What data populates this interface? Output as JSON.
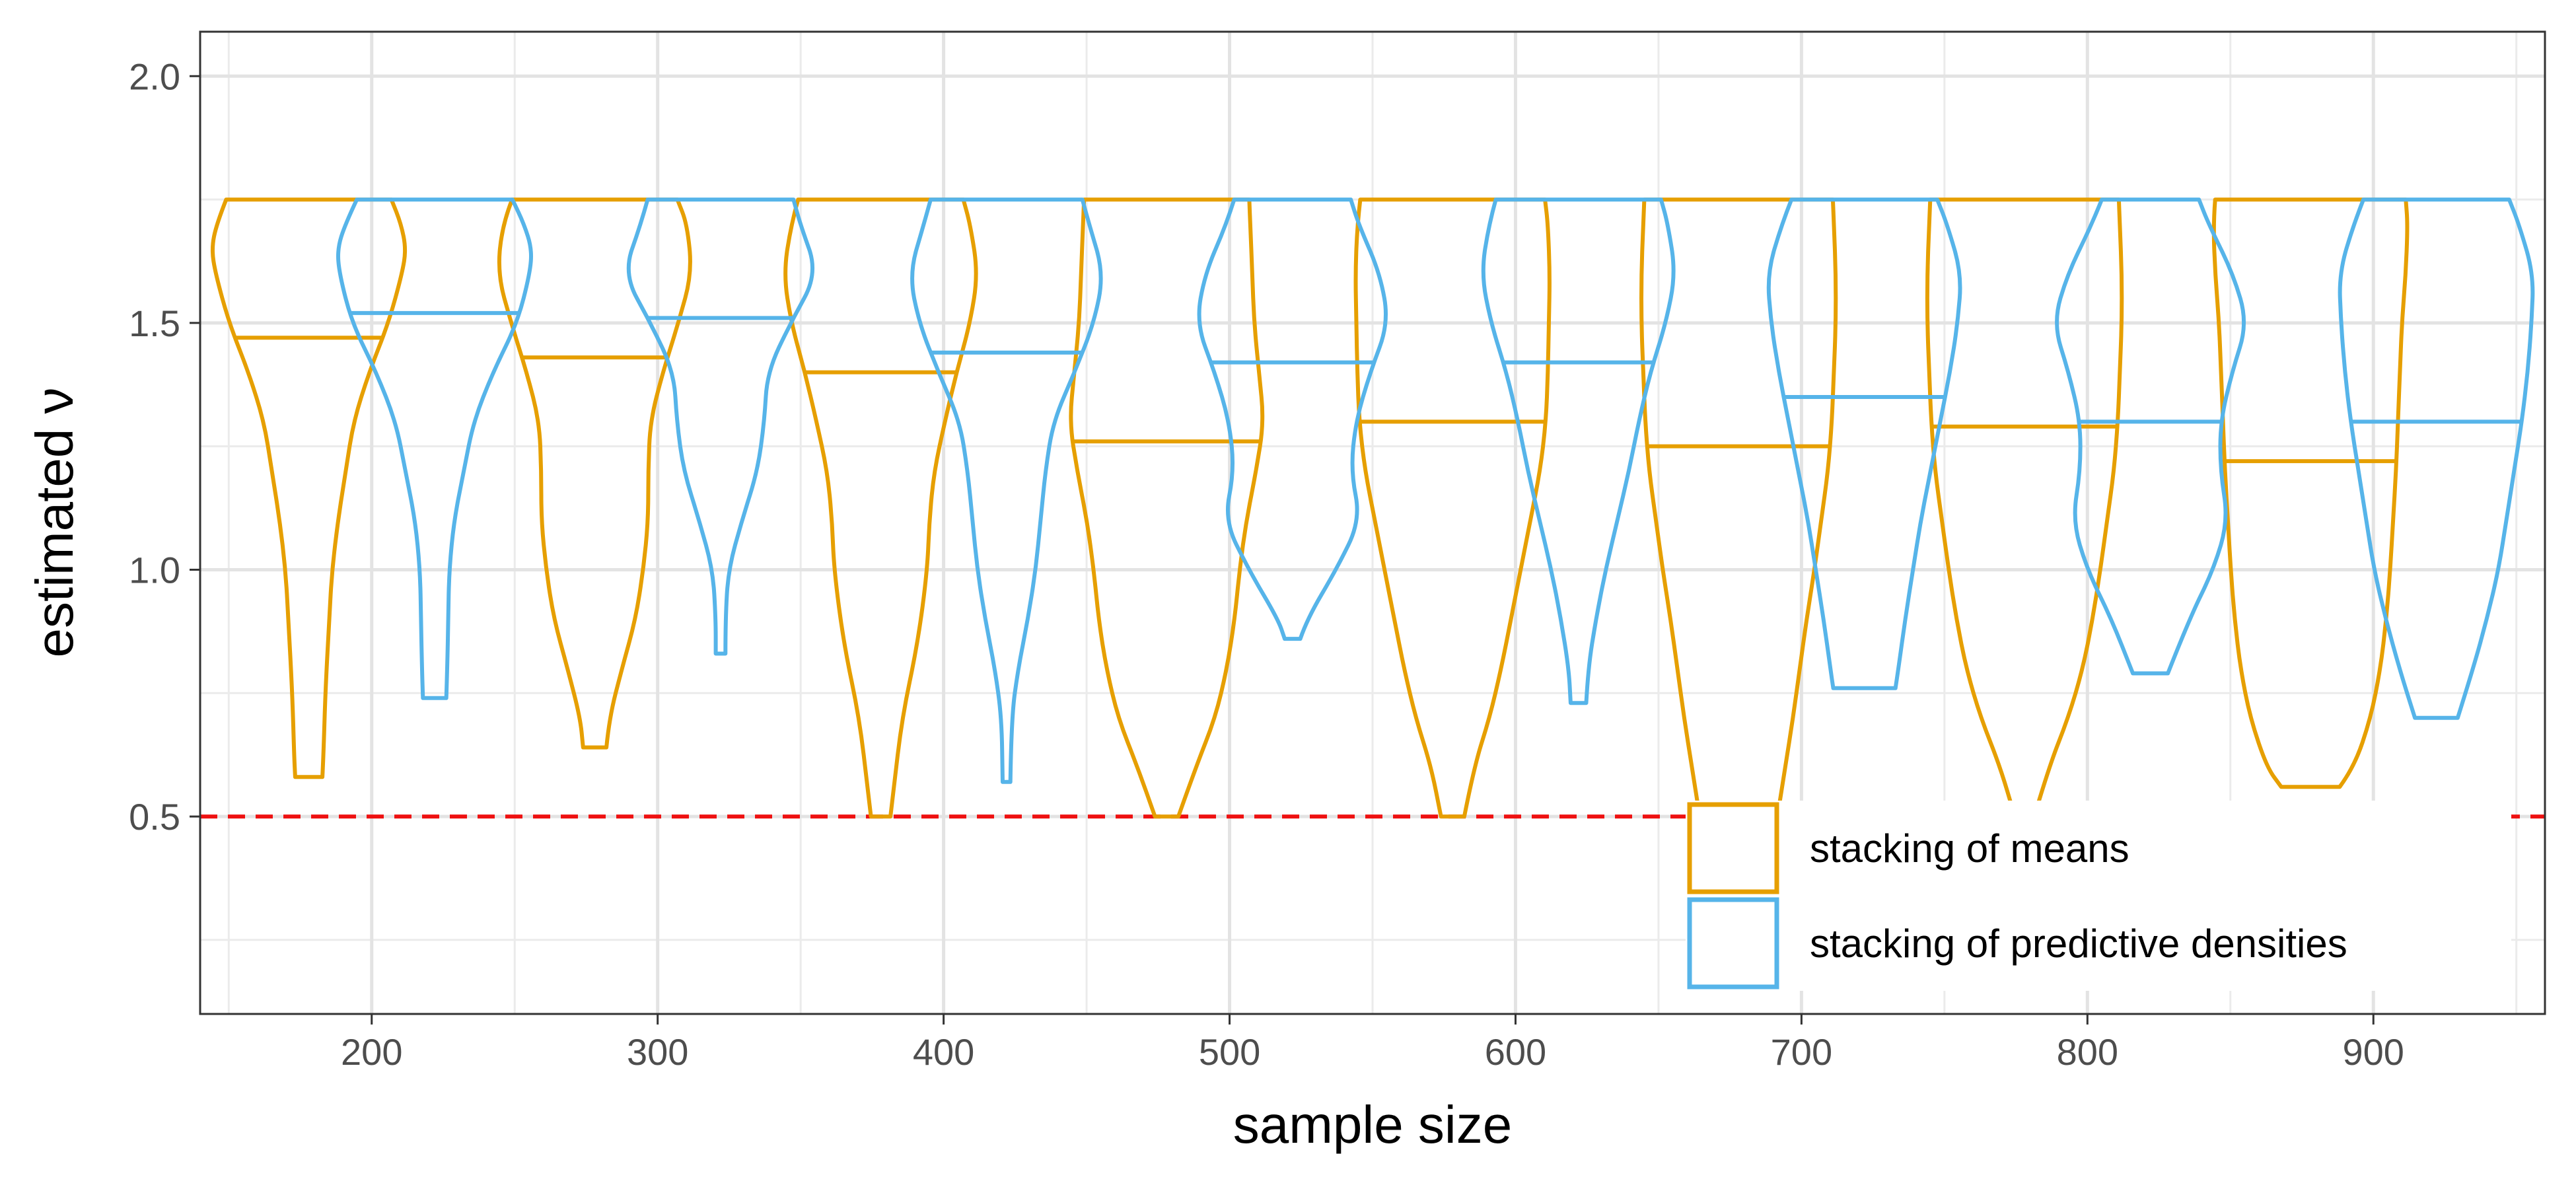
{
  "chart_data": {
    "type": "violin",
    "title": "",
    "xlabel": "sample size",
    "ylabel": "estimated ν",
    "xlim": [
      140,
      960
    ],
    "ylim": [
      0.1,
      2.09
    ],
    "xticks": [
      200,
      300,
      400,
      500,
      600,
      700,
      800,
      900
    ],
    "xtick_labels": [
      "200",
      "300",
      "400",
      "500",
      "600",
      "700",
      "800",
      "900"
    ],
    "yticks": [
      0.5,
      1.0,
      1.5,
      2.0
    ],
    "ytick_labels": [
      "0.5",
      "1.0",
      "1.5",
      "2.0"
    ],
    "grid": true,
    "reference_line": {
      "y": 0.5,
      "style": "dashed",
      "color": "#ee1111"
    },
    "legend": {
      "placement": "bottom-right",
      "entries": [
        {
          "label": "stacking of means",
          "color": "#e69f00"
        },
        {
          "label": "stacking of predictive densities",
          "color": "#56b4e9"
        }
      ]
    },
    "series": [
      {
        "name": "stacking of means",
        "color": "#e69f00",
        "offset": -22,
        "violins": [
          {
            "x": 200,
            "min": 0.58,
            "max": 1.75,
            "median": 1.47,
            "profile": [
              [
                0.58,
                0.14
              ],
              [
                0.62,
                0.15
              ],
              [
                0.75,
                0.17
              ],
              [
                0.9,
                0.21
              ],
              [
                1.0,
                0.24
              ],
              [
                1.1,
                0.3
              ],
              [
                1.2,
                0.38
              ],
              [
                1.3,
                0.46
              ],
              [
                1.4,
                0.62
              ],
              [
                1.5,
                0.82
              ],
              [
                1.6,
                0.96
              ],
              [
                1.65,
                1.0
              ],
              [
                1.7,
                0.95
              ],
              [
                1.75,
                0.85
              ]
            ]
          },
          {
            "x": 300,
            "min": 0.64,
            "max": 1.75,
            "median": 1.43,
            "profile": [
              [
                0.64,
                0.12
              ],
              [
                0.7,
                0.15
              ],
              [
                0.8,
                0.28
              ],
              [
                0.9,
                0.42
              ],
              [
                1.0,
                0.5
              ],
              [
                1.1,
                0.55
              ],
              [
                1.2,
                0.55
              ],
              [
                1.3,
                0.57
              ],
              [
                1.4,
                0.7
              ],
              [
                1.5,
                0.86
              ],
              [
                1.6,
                1.0
              ],
              [
                1.7,
                0.95
              ],
              [
                1.75,
                0.85
              ]
            ]
          },
          {
            "x": 400,
            "min": 0.5,
            "max": 1.75,
            "median": 1.4,
            "profile": [
              [
                0.5,
                0.1
              ],
              [
                0.55,
                0.13
              ],
              [
                0.7,
                0.22
              ],
              [
                0.85,
                0.38
              ],
              [
                1.0,
                0.48
              ],
              [
                1.1,
                0.5
              ],
              [
                1.2,
                0.55
              ],
              [
                1.3,
                0.66
              ],
              [
                1.4,
                0.78
              ],
              [
                1.5,
                0.92
              ],
              [
                1.6,
                1.0
              ],
              [
                1.7,
                0.92
              ],
              [
                1.75,
                0.85
              ]
            ]
          },
          {
            "x": 500,
            "min": 0.5,
            "max": 1.75,
            "median": 1.26,
            "profile": [
              [
                0.5,
                0.12
              ],
              [
                0.6,
                0.3
              ],
              [
                0.7,
                0.5
              ],
              [
                0.8,
                0.62
              ],
              [
                0.9,
                0.7
              ],
              [
                1.0,
                0.75
              ],
              [
                1.1,
                0.82
              ],
              [
                1.2,
                0.92
              ],
              [
                1.3,
                1.0
              ],
              [
                1.4,
                0.95
              ],
              [
                1.5,
                0.9
              ],
              [
                1.6,
                0.88
              ],
              [
                1.7,
                0.86
              ],
              [
                1.75,
                0.85
              ]
            ]
          },
          {
            "x": 600,
            "min": 0.5,
            "max": 1.75,
            "median": 1.3,
            "profile": [
              [
                0.5,
                0.12
              ],
              [
                0.6,
                0.22
              ],
              [
                0.7,
                0.38
              ],
              [
                0.8,
                0.5
              ],
              [
                0.9,
                0.6
              ],
              [
                1.0,
                0.7
              ],
              [
                1.1,
                0.8
              ],
              [
                1.2,
                0.9
              ],
              [
                1.3,
                0.96
              ],
              [
                1.4,
                0.98
              ],
              [
                1.5,
                0.99
              ],
              [
                1.6,
                1.0
              ],
              [
                1.7,
                0.98
              ],
              [
                1.75,
                0.95
              ]
            ]
          },
          {
            "x": 700,
            "min": 0.5,
            "max": 1.75,
            "median": 1.25,
            "profile": [
              [
                0.5,
                0.4
              ],
              [
                0.6,
                0.48
              ],
              [
                0.7,
                0.56
              ],
              [
                0.8,
                0.63
              ],
              [
                0.9,
                0.7
              ],
              [
                1.0,
                0.78
              ],
              [
                1.1,
                0.85
              ],
              [
                1.2,
                0.92
              ],
              [
                1.3,
                0.96
              ],
              [
                1.4,
                0.98
              ],
              [
                1.5,
                1.0
              ],
              [
                1.6,
                1.0
              ],
              [
                1.7,
                0.98
              ],
              [
                1.75,
                0.97
              ]
            ]
          },
          {
            "x": 800,
            "min": 0.5,
            "max": 1.75,
            "median": 1.29,
            "profile": [
              [
                0.5,
                0.1
              ],
              [
                0.6,
                0.25
              ],
              [
                0.7,
                0.45
              ],
              [
                0.8,
                0.6
              ],
              [
                0.9,
                0.7
              ],
              [
                1.0,
                0.78
              ],
              [
                1.1,
                0.85
              ],
              [
                1.2,
                0.92
              ],
              [
                1.3,
                0.96
              ],
              [
                1.4,
                0.98
              ],
              [
                1.5,
                1.0
              ],
              [
                1.6,
                1.0
              ],
              [
                1.7,
                0.98
              ],
              [
                1.75,
                0.97
              ]
            ]
          },
          {
            "x": 900,
            "min": 0.56,
            "max": 1.75,
            "median": 1.22,
            "profile": [
              [
                0.56,
                0.3
              ],
              [
                0.6,
                0.45
              ],
              [
                0.7,
                0.62
              ],
              [
                0.8,
                0.72
              ],
              [
                0.9,
                0.78
              ],
              [
                1.0,
                0.82
              ],
              [
                1.1,
                0.85
              ],
              [
                1.2,
                0.88
              ],
              [
                1.3,
                0.9
              ],
              [
                1.4,
                0.92
              ],
              [
                1.5,
                0.94
              ],
              [
                1.6,
                0.98
              ],
              [
                1.7,
                1.0
              ],
              [
                1.75,
                0.98
              ]
            ]
          }
        ]
      },
      {
        "name": "stacking of predictive densities",
        "color": "#56b4e9",
        "offset": 22,
        "violins": [
          {
            "x": 200,
            "min": 0.74,
            "max": 1.75,
            "median": 1.52,
            "profile": [
              [
                0.74,
                0.12
              ],
              [
                0.8,
                0.13
              ],
              [
                0.9,
                0.14
              ],
              [
                1.0,
                0.15
              ],
              [
                1.1,
                0.2
              ],
              [
                1.2,
                0.3
              ],
              [
                1.3,
                0.4
              ],
              [
                1.4,
                0.6
              ],
              [
                1.5,
                0.85
              ],
              [
                1.6,
                0.98
              ],
              [
                1.65,
                1.0
              ],
              [
                1.7,
                0.92
              ],
              [
                1.75,
                0.8
              ]
            ]
          },
          {
            "x": 300,
            "min": 0.83,
            "max": 1.75,
            "median": 1.51,
            "profile": [
              [
                0.83,
                0.05
              ],
              [
                0.9,
                0.05
              ],
              [
                1.0,
                0.08
              ],
              [
                1.1,
                0.22
              ],
              [
                1.2,
                0.38
              ],
              [
                1.3,
                0.45
              ],
              [
                1.4,
                0.48
              ],
              [
                1.5,
                0.72
              ],
              [
                1.6,
                1.0
              ],
              [
                1.7,
                0.82
              ],
              [
                1.75,
                0.75
              ]
            ]
          },
          {
            "x": 400,
            "min": 0.57,
            "max": 1.75,
            "median": 1.44,
            "profile": [
              [
                0.57,
                0.04
              ],
              [
                0.7,
                0.05
              ],
              [
                0.8,
                0.12
              ],
              [
                0.9,
                0.22
              ],
              [
                1.0,
                0.3
              ],
              [
                1.1,
                0.35
              ],
              [
                1.2,
                0.4
              ],
              [
                1.3,
                0.48
              ],
              [
                1.4,
                0.7
              ],
              [
                1.5,
                0.9
              ],
              [
                1.6,
                1.0
              ],
              [
                1.7,
                0.85
              ],
              [
                1.75,
                0.78
              ]
            ]
          },
          {
            "x": 500,
            "min": 0.86,
            "max": 1.75,
            "median": 1.42,
            "profile": [
              [
                0.86,
                0.08
              ],
              [
                0.9,
                0.15
              ],
              [
                1.0,
                0.45
              ],
              [
                1.1,
                0.7
              ],
              [
                1.2,
                0.6
              ],
              [
                1.3,
                0.65
              ],
              [
                1.4,
                0.8
              ],
              [
                1.5,
                0.99
              ],
              [
                1.6,
                0.9
              ],
              [
                1.7,
                0.68
              ],
              [
                1.75,
                0.6
              ]
            ]
          },
          {
            "x": 600,
            "min": 0.73,
            "max": 1.75,
            "median": 1.42,
            "profile": [
              [
                0.73,
                0.08
              ],
              [
                0.8,
                0.1
              ],
              [
                0.9,
                0.18
              ],
              [
                1.0,
                0.28
              ],
              [
                1.1,
                0.4
              ],
              [
                1.2,
                0.52
              ],
              [
                1.3,
                0.62
              ],
              [
                1.4,
                0.74
              ],
              [
                1.5,
                0.9
              ],
              [
                1.6,
                1.0
              ],
              [
                1.7,
                0.92
              ],
              [
                1.75,
                0.85
              ]
            ]
          },
          {
            "x": 700,
            "min": 0.76,
            "max": 1.75,
            "median": 1.35,
            "profile": [
              [
                0.76,
                0.32
              ],
              [
                0.8,
                0.35
              ],
              [
                0.9,
                0.42
              ],
              [
                1.0,
                0.5
              ],
              [
                1.1,
                0.58
              ],
              [
                1.2,
                0.68
              ],
              [
                1.3,
                0.78
              ],
              [
                1.4,
                0.88
              ],
              [
                1.5,
                0.96
              ],
              [
                1.6,
                1.0
              ],
              [
                1.7,
                0.85
              ],
              [
                1.75,
                0.75
              ]
            ]
          },
          {
            "x": 800,
            "min": 0.79,
            "max": 1.75,
            "median": 1.3,
            "profile": [
              [
                0.79,
                0.18
              ],
              [
                0.9,
                0.4
              ],
              [
                1.0,
                0.65
              ],
              [
                1.1,
                0.8
              ],
              [
                1.2,
                0.72
              ],
              [
                1.3,
                0.72
              ],
              [
                1.4,
                0.84
              ],
              [
                1.5,
                1.0
              ],
              [
                1.6,
                0.85
              ],
              [
                1.7,
                0.6
              ],
              [
                1.75,
                0.5
              ]
            ]
          },
          {
            "x": 900,
            "min": 0.7,
            "max": 1.75,
            "median": 1.3,
            "profile": [
              [
                0.7,
                0.22
              ],
              [
                0.8,
                0.38
              ],
              [
                0.9,
                0.52
              ],
              [
                1.0,
                0.64
              ],
              [
                1.1,
                0.72
              ],
              [
                1.2,
                0.8
              ],
              [
                1.3,
                0.88
              ],
              [
                1.4,
                0.94
              ],
              [
                1.5,
                0.98
              ],
              [
                1.6,
                1.0
              ],
              [
                1.7,
                0.85
              ],
              [
                1.75,
                0.75
              ]
            ]
          }
        ]
      }
    ]
  }
}
